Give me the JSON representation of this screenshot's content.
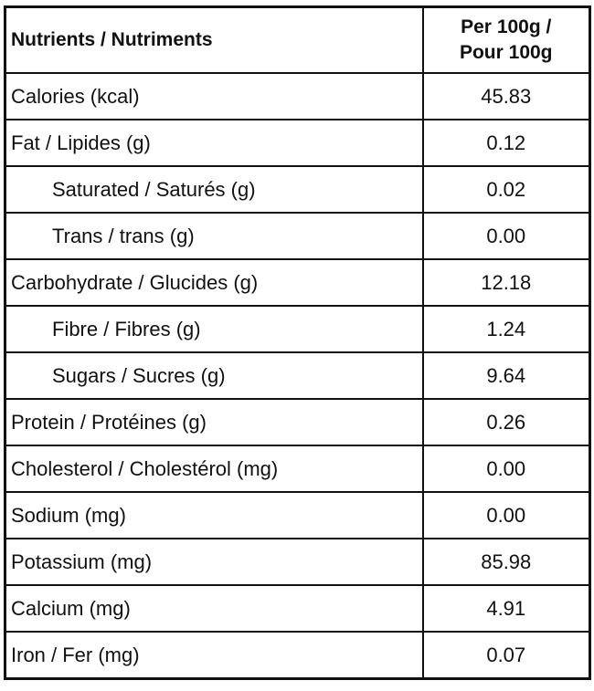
{
  "table": {
    "header": {
      "nutrient": "Nutrients / Nutriments",
      "per_line1": "Per 100g /",
      "per_line2": "Pour 100g"
    },
    "rows": [
      {
        "label": "Calories (kcal)",
        "value": "45.83",
        "indent": false
      },
      {
        "label": "Fat / Lipides (g)",
        "value": "0.12",
        "indent": false
      },
      {
        "label": "Saturated / Saturés (g)",
        "value": "0.02",
        "indent": true
      },
      {
        "label": "Trans / trans (g)",
        "value": "0.00",
        "indent": true
      },
      {
        "label": "Carbohydrate / Glucides (g)",
        "value": "12.18",
        "indent": false
      },
      {
        "label": "Fibre / Fibres (g)",
        "value": "1.24",
        "indent": true
      },
      {
        "label": "Sugars / Sucres (g)",
        "value": "9.64",
        "indent": true
      },
      {
        "label": "Protein / Protéines (g)",
        "value": "0.26",
        "indent": false
      },
      {
        "label": "Cholesterol / Cholestérol (mg)",
        "value": "0.00",
        "indent": false
      },
      {
        "label": "Sodium (mg)",
        "value": "0.00",
        "indent": false
      },
      {
        "label": "Potassium (mg)",
        "value": "85.98",
        "indent": false
      },
      {
        "label": "Calcium (mg)",
        "value": "4.91",
        "indent": false
      },
      {
        "label": "Iron / Fer (mg)",
        "value": "0.07",
        "indent": false
      }
    ]
  }
}
